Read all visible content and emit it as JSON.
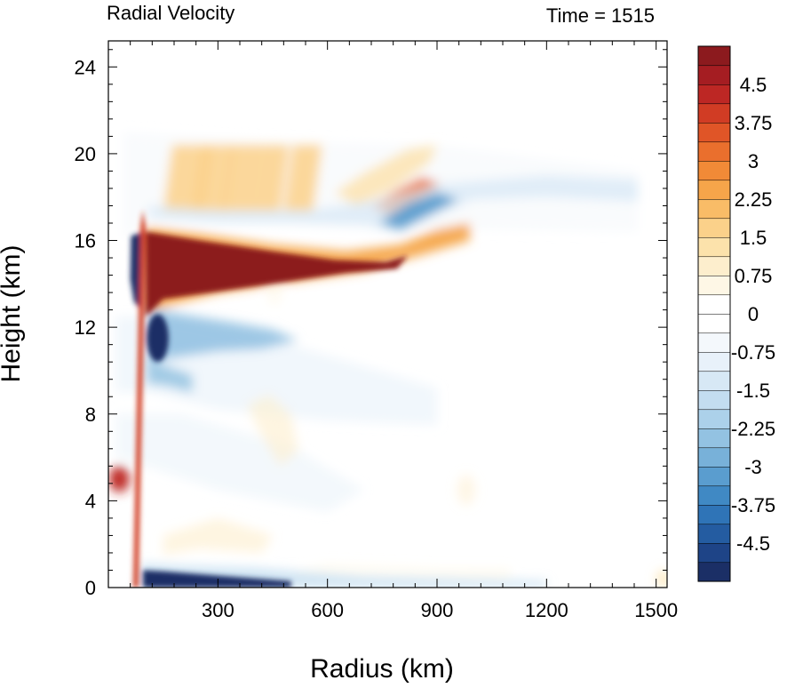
{
  "chart_data": {
    "type": "heatmap",
    "title_left": "Radial Velocity",
    "title_right": "Time = 1515",
    "xlabel": "Radius (km)",
    "ylabel": "Height (km)",
    "xlim": [
      0,
      1530
    ],
    "ylim": [
      0,
      25.2
    ],
    "xticks": [
      300,
      600,
      900,
      1200,
      1500
    ],
    "xtick_labels": [
      "300",
      "600",
      "900",
      "1200",
      "1500"
    ],
    "yticks": [
      0,
      4,
      8,
      12,
      16,
      20,
      24
    ],
    "ytick_labels": [
      "0",
      "4",
      "8",
      "12",
      "16",
      "20",
      "24"
    ],
    "colorbar": {
      "min": -5.25,
      "max": 5.25,
      "step": 0.375,
      "labels": [
        "4.5",
        "3.75",
        "3",
        "2.25",
        "1.5",
        "0.75",
        "0",
        "-0.75",
        "-1.5",
        "-2.25",
        "-3",
        "-3.75",
        "-4.5"
      ],
      "label_values": [
        4.5,
        3.75,
        3,
        2.25,
        1.5,
        0.75,
        0,
        -0.75,
        -1.5,
        -2.25,
        -3,
        -3.75,
        -4.5
      ],
      "colors": [
        "#1b2f66",
        "#1e4487",
        "#245ca1",
        "#2f74b7",
        "#4089c4",
        "#5a9dcf",
        "#78b1d9",
        "#93c2e2",
        "#acd1ea",
        "#c3ddf0",
        "#d7e8f5",
        "#e8f1fa",
        "#f4f8fc",
        "#ffffff",
        "#ffffff",
        "#fef7e6",
        "#fdeecd",
        "#fce2ab",
        "#fbd18a",
        "#f9bc67",
        "#f6a54a",
        "#f18a37",
        "#ea6f2d",
        "#e05527",
        "#d13c24",
        "#bd2724",
        "#a51d22",
        "#8c1a1e"
      ]
    },
    "features": [
      {
        "name": "outflow jet",
        "r": [
          100,
          820
        ],
        "z": [
          13.4,
          16.4
        ],
        "u": 5.3
      },
      {
        "name": "eyewall inflow",
        "r": [
          110,
          300
        ],
        "z": [
          10.5,
          12.8
        ],
        "u": -4.5
      },
      {
        "name": "boundary-layer inflow",
        "r": [
          100,
          600
        ],
        "z": [
          0,
          0.8
        ],
        "u": -5.0
      },
      {
        "name": "eye jet",
        "r": [
          60,
          100
        ],
        "z": [
          12.5,
          16.2
        ],
        "u": -5.0
      },
      {
        "name": "upper outflow band",
        "r": [
          600,
          1000
        ],
        "z": [
          16,
          18
        ],
        "u": 2.4
      },
      {
        "name": "upper inflow band",
        "r": [
          500,
          1450
        ],
        "z": [
          16.5,
          18.8
        ],
        "u": -1.5
      },
      {
        "name": "low-level outflow",
        "r": [
          0,
          60
        ],
        "z": [
          4.5,
          5.5
        ],
        "u": 4.0
      }
    ]
  }
}
